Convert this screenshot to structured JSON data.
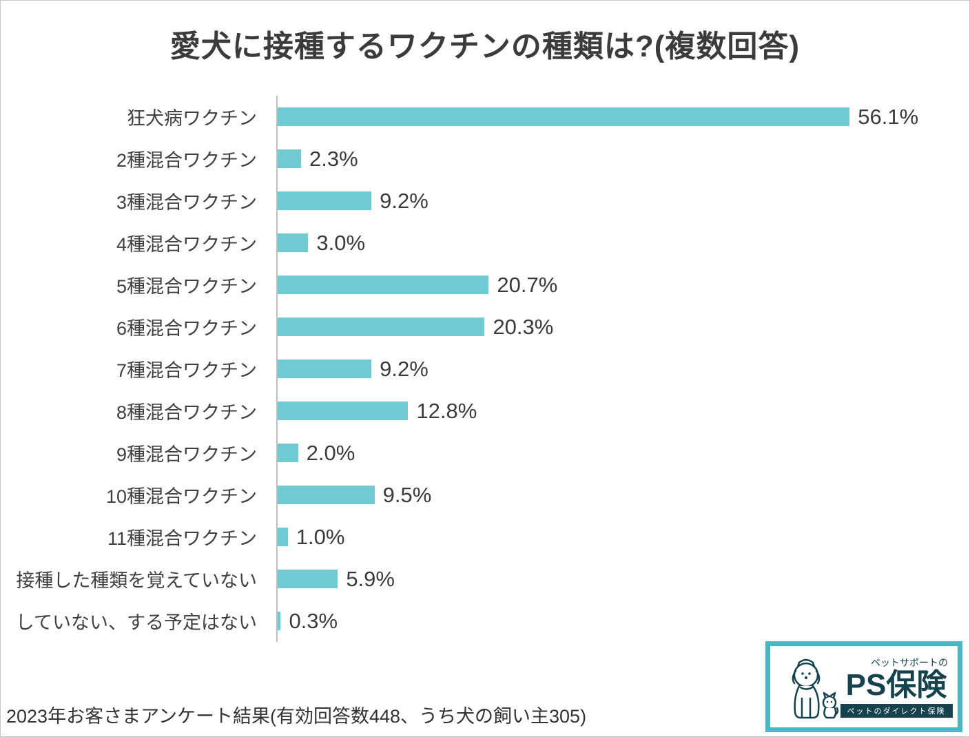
{
  "title": "愛犬に接種するワクチンの種類は?(複数回答)",
  "footer": "2023年お客さまアンケート結果(有効回答数448、うち犬の飼い主305)",
  "logo": {
    "tagline": "ペットサポートの",
    "brand": "PS保険",
    "subtitle": "ペットのダイレクト保険"
  },
  "chart_data": {
    "type": "bar",
    "orientation": "horizontal",
    "title": "愛犬に接種するワクチンの種類は?(複数回答)",
    "categories": [
      "狂犬病ワクチン",
      "2種混合ワクチン",
      "3種混合ワクチン",
      "4種混合ワクチン",
      "5種混合ワクチン",
      "6種混合ワクチン",
      "7種混合ワクチン",
      "8種混合ワクチン",
      "9種混合ワクチン",
      "10種混合ワクチン",
      "11種混合ワクチン",
      "接種した種類を覚えていない",
      "していない、する予定はない"
    ],
    "values": [
      56.1,
      2.3,
      9.2,
      3.0,
      20.7,
      20.3,
      9.2,
      12.8,
      2.0,
      9.5,
      1.0,
      5.9,
      0.3
    ],
    "value_labels": [
      "56.1%",
      "2.3%",
      "9.2%",
      "3.0%",
      "20.7%",
      "20.3%",
      "9.2%",
      "12.8%",
      "2.0%",
      "9.5%",
      "1.0%",
      "5.9%",
      "0.3%"
    ],
    "xlabel": "",
    "ylabel": "",
    "xlim": [
      0,
      60
    ],
    "grid": false,
    "legend": null,
    "bar_color": "#6fcbd1",
    "axis_color": "#bfbfbf"
  }
}
